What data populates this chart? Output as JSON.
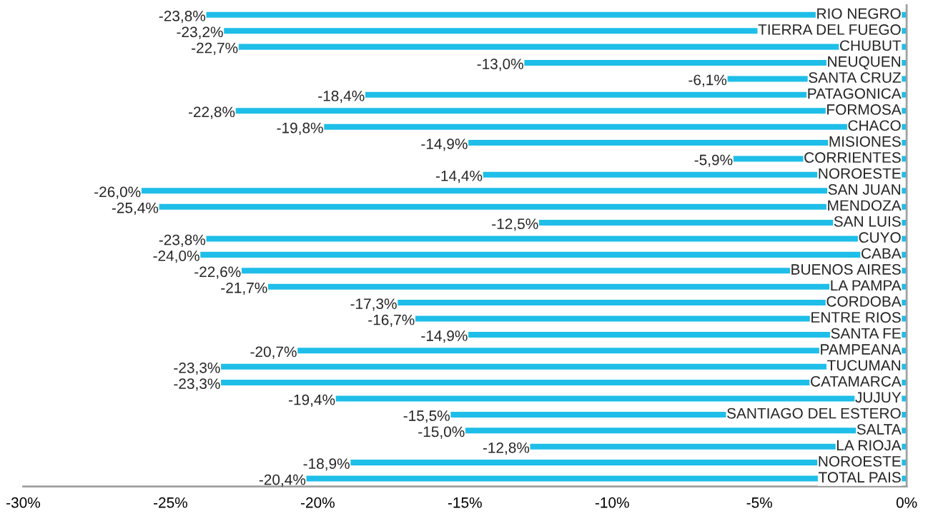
{
  "chart_data": {
    "type": "bar",
    "orientation": "horizontal",
    "categories": [
      "RIO NEGRO",
      "TIERRA DEL FUEGO",
      "CHUBUT",
      "NEUQUEN",
      "SANTA CRUZ",
      "PATAGONICA",
      "FORMOSA",
      "CHACO",
      "MISIONES",
      "CORRIENTES",
      "NOROESTE",
      "SAN JUAN",
      "MENDOZA",
      "SAN LUIS",
      "CUYO",
      "CABA",
      "BUENOS AIRES",
      "LA PAMPA",
      "CORDOBA",
      "ENTRE RIOS",
      "SANTA FE",
      "PAMPEANA",
      "TUCUMAN",
      "CATAMARCA",
      "JUJUY",
      "SANTIAGO DEL ESTERO",
      "SALTA",
      "LA RIOJA",
      "NOROESTE",
      "TOTAL PAIS"
    ],
    "values": [
      -23.8,
      -23.2,
      -22.7,
      -13.0,
      -6.1,
      -18.4,
      -22.8,
      -19.8,
      -14.9,
      -5.9,
      -14.4,
      -26.0,
      -25.4,
      -12.5,
      -23.8,
      -24.0,
      -22.6,
      -21.7,
      -17.3,
      -16.7,
      -14.9,
      -20.7,
      -23.3,
      -23.3,
      -19.4,
      -15.5,
      -15.0,
      -12.8,
      -18.9,
      -20.4
    ],
    "value_labels": [
      "-23,8%",
      "-23,2%",
      "-22,7%",
      "-13,0%",
      "-6,1%",
      "-18,4%",
      "-22,8%",
      "-19,8%",
      "-14,9%",
      "-5,9%",
      "-14,4%",
      "-26,0%",
      "-25,4%",
      "-12,5%",
      "-23,8%",
      "-24,0%",
      "-22,6%",
      "-21,7%",
      "-17,3%",
      "-16,7%",
      "-14,9%",
      "-20,7%",
      "-23,3%",
      "-23,3%",
      "-19,4%",
      "-15,5%",
      "-15,0%",
      "-12,8%",
      "-18,9%",
      "-20,4%"
    ],
    "color": "#1ebee8",
    "xlim": [
      -30,
      0
    ],
    "xticks": [
      {
        "value": -30,
        "label": "-30%"
      },
      {
        "value": -25,
        "label": "-25%"
      },
      {
        "value": -20,
        "label": "-20%"
      },
      {
        "value": -15,
        "label": "-15%"
      },
      {
        "value": -10,
        "label": "-10%"
      },
      {
        "value": -5,
        "label": "-5%"
      },
      {
        "value": 0,
        "label": "0%"
      }
    ],
    "grid": false,
    "legend": false
  }
}
